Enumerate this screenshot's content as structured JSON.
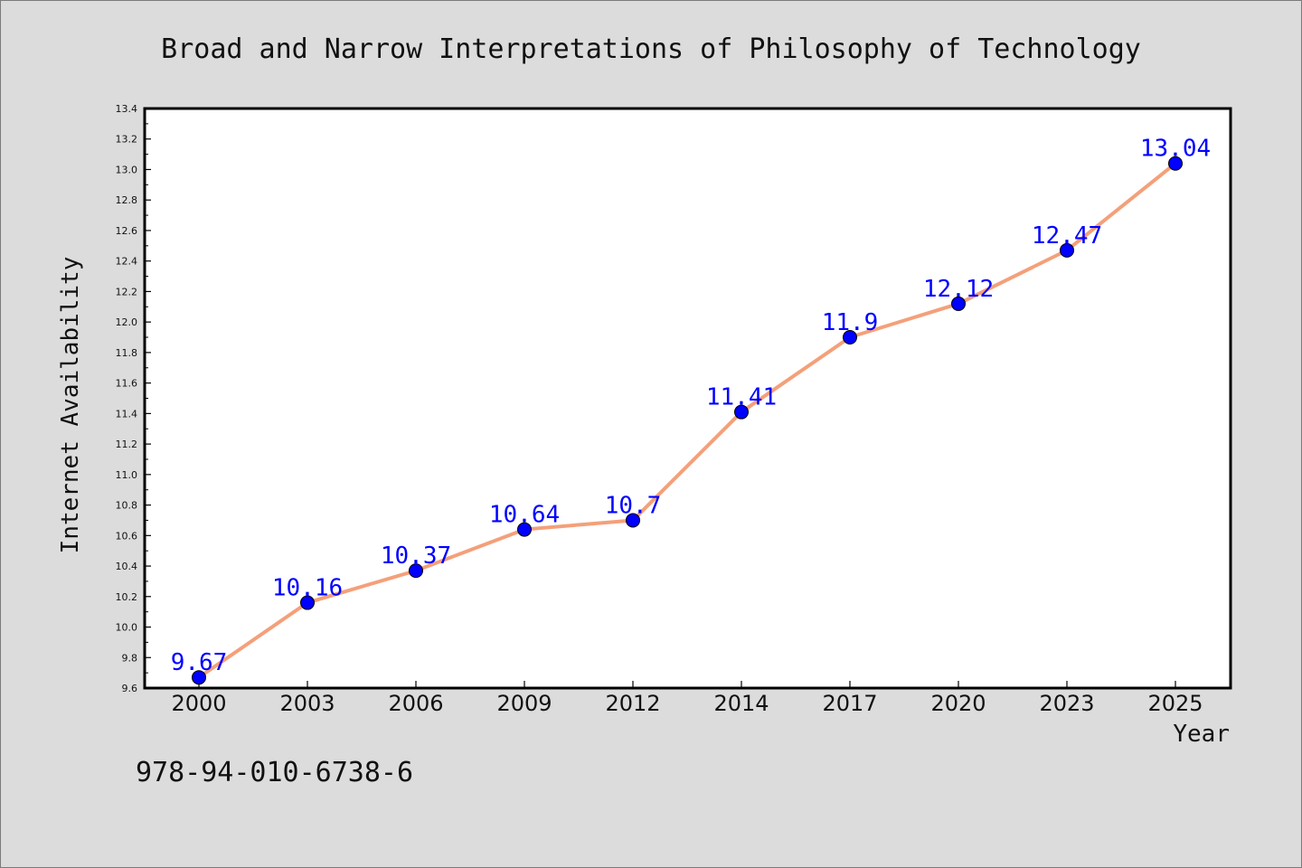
{
  "chart_data": {
    "type": "line",
    "title": "Broad and Narrow Interpretations of Philosophy of Technology",
    "xlabel": "Year",
    "ylabel": "Internet Availability",
    "categories": [
      "2000",
      "2003",
      "2006",
      "2009",
      "2012",
      "2014",
      "2017",
      "2020",
      "2023",
      "2025"
    ],
    "series": [
      {
        "values": [
          9.67,
          10.16,
          10.37,
          10.64,
          10.7,
          11.41,
          11.9,
          12.12,
          12.47,
          13.04
        ],
        "data_labels": [
          "9.67",
          "10.16",
          "10.37",
          "10.64",
          "10.7",
          "11.41",
          "11.9",
          "12.12",
          "12.47",
          "13.04"
        ],
        "line_color": "#f4a07a",
        "marker_color": "#0000ff"
      }
    ],
    "ylim": [
      9.6,
      13.4
    ],
    "y_ticks": [
      "9.6",
      "9.8",
      "10.0",
      "10.2",
      "10.4",
      "10.6",
      "10.8",
      "11.0",
      "11.2",
      "11.4",
      "11.6",
      "11.8",
      "12.0",
      "12.2",
      "12.4",
      "12.6",
      "12.8",
      "13.0",
      "13.2",
      "13.4"
    ],
    "grid": false,
    "background_color": "#dcdcdc",
    "plot_background_color": "#ffffff"
  },
  "footer_code": "978-94-010-6738-6"
}
